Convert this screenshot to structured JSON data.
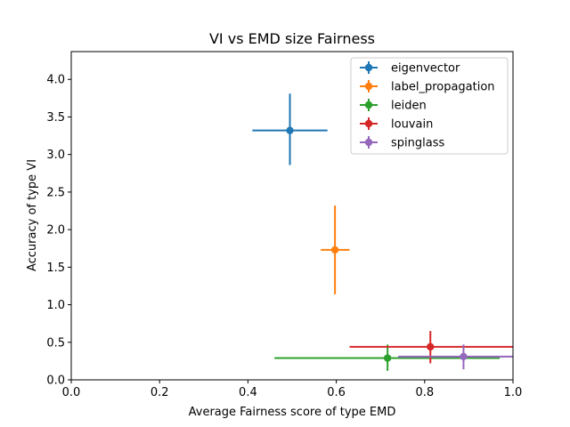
{
  "chart_data": {
    "type": "scatter",
    "title": "VI vs EMD size Fairness",
    "xlabel": "Average Fairness score of type EMD",
    "ylabel": "Accuracy of type VI",
    "xlim": [
      0.0,
      1.0
    ],
    "ylim": [
      0.0,
      4.37
    ],
    "xticks": [
      "0.0",
      "0.2",
      "0.4",
      "0.6",
      "0.8",
      "1.0"
    ],
    "yticks": [
      "0.0",
      "0.5",
      "1.0",
      "1.5",
      "2.0",
      "2.5",
      "3.0",
      "3.5",
      "4.0"
    ],
    "grid": false,
    "legend_position": "top-right",
    "series": [
      {
        "name": "eigenvector",
        "color": "#1f77b4",
        "x": 0.495,
        "y": 3.32,
        "xerr_low": 0.41,
        "xerr_high": 0.58,
        "yerr_low": 2.86,
        "yerr_high": 3.81
      },
      {
        "name": "label_propagation",
        "color": "#ff7f0e",
        "x": 0.597,
        "y": 1.73,
        "xerr_low": 0.565,
        "xerr_high": 0.63,
        "yerr_low": 1.14,
        "yerr_high": 2.32
      },
      {
        "name": "leiden",
        "color": "#2ca02c",
        "x": 0.716,
        "y": 0.29,
        "xerr_low": 0.46,
        "xerr_high": 0.97,
        "yerr_low": 0.12,
        "yerr_high": 0.47
      },
      {
        "name": "louvain",
        "color": "#d62728",
        "x": 0.813,
        "y": 0.44,
        "xerr_low": 0.63,
        "xerr_high": 1.0,
        "yerr_low": 0.22,
        "yerr_high": 0.65
      },
      {
        "name": "spinglass",
        "color": "#9467bd",
        "x": 0.888,
        "y": 0.31,
        "xerr_low": 0.74,
        "xerr_high": 1.0,
        "yerr_low": 0.14,
        "yerr_high": 0.47
      }
    ]
  }
}
